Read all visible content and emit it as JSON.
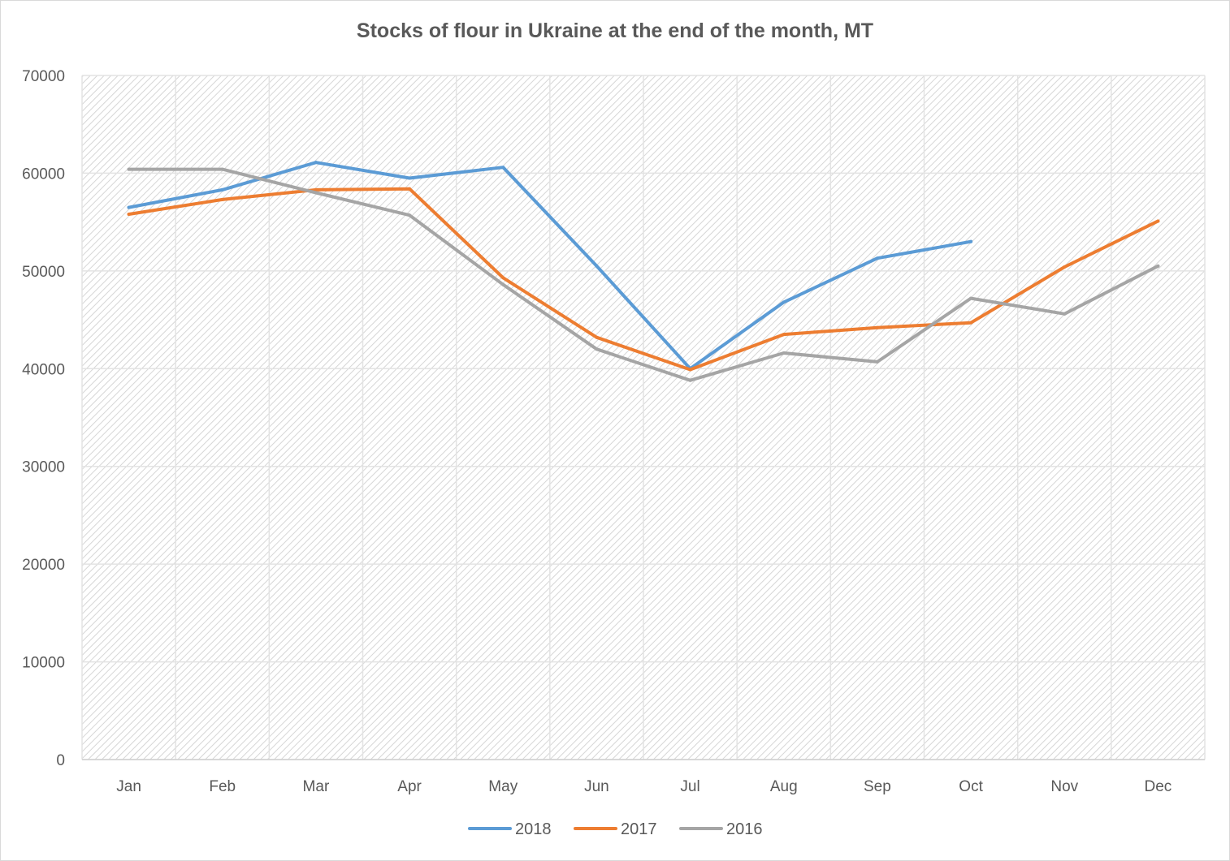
{
  "chart_data": {
    "type": "line",
    "title": "Stocks of flour in Ukraine at the end of the month, MT",
    "xlabel": "",
    "ylabel": "",
    "categories": [
      "Jan",
      "Feb",
      "Mar",
      "Apr",
      "May",
      "Jun",
      "Jul",
      "Aug",
      "Sep",
      "Oct",
      "Nov",
      "Dec"
    ],
    "ylim": [
      0,
      70000
    ],
    "yticks": [
      "0",
      "10000",
      "20000",
      "30000",
      "40000",
      "50000",
      "60000",
      "70000"
    ],
    "grid": true,
    "legend_position": "bottom",
    "series": [
      {
        "name": "2018",
        "color": "#5b9bd5",
        "values": [
          56500,
          58300,
          61100,
          59500,
          60600,
          50500,
          40000,
          46800,
          51300,
          53000,
          null,
          null
        ]
      },
      {
        "name": "2017",
        "color": "#ed7d31",
        "values": [
          55800,
          57300,
          58300,
          58400,
          49300,
          43200,
          39900,
          43500,
          44200,
          44700,
          50400,
          55100
        ]
      },
      {
        "name": "2016",
        "color": "#a5a5a5",
        "values": [
          60400,
          60400,
          58000,
          55700,
          48600,
          42000,
          38800,
          41600,
          40700,
          47200,
          45600,
          50500
        ]
      }
    ]
  }
}
